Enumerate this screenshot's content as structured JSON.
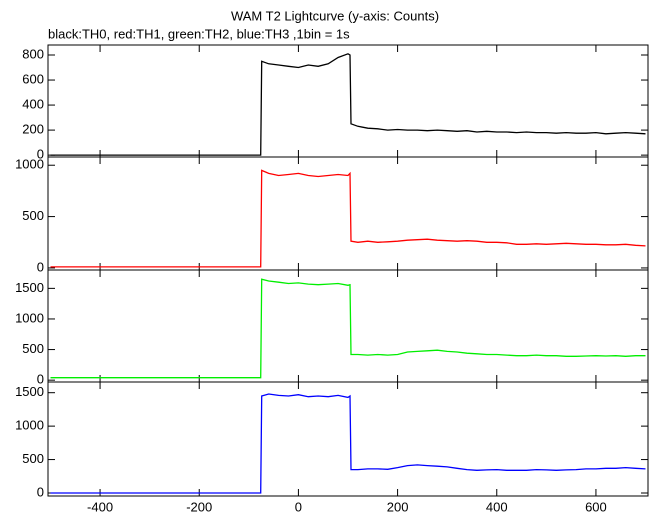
{
  "header": {
    "title": "WAM T2 Lightcurve (y-axis: Counts)",
    "subtitle": "black:TH0, red:TH1, green:TH2, blue:TH3 ,1bin = 1s"
  },
  "chart_data": [
    {
      "type": "line",
      "xlim": [
        -505,
        705
      ],
      "ylim": [
        -15,
        880
      ],
      "yticks": [
        0,
        200,
        400,
        600,
        800
      ],
      "x": [
        -500,
        -400,
        -300,
        -200,
        -100,
        -76,
        -74,
        -60,
        -40,
        -20,
        0,
        20,
        40,
        60,
        80,
        100,
        104,
        106,
        120,
        140,
        160,
        180,
        200,
        220,
        240,
        260,
        280,
        300,
        320,
        340,
        360,
        380,
        400,
        420,
        440,
        460,
        480,
        500,
        520,
        540,
        560,
        580,
        600,
        620,
        640,
        660,
        680,
        700
      ],
      "series": [
        {
          "name": "TH0",
          "color": "#000000",
          "values": [
            0,
            0,
            0,
            0,
            0,
            0,
            750,
            730,
            720,
            710,
            700,
            720,
            710,
            730,
            780,
            810,
            800,
            250,
            230,
            215,
            210,
            200,
            205,
            200,
            200,
            195,
            200,
            195,
            190,
            195,
            185,
            190,
            185,
            185,
            180,
            185,
            180,
            180,
            175,
            180,
            175,
            175,
            180,
            170,
            175,
            180,
            175,
            170
          ]
        }
      ]
    },
    {
      "type": "line",
      "xlim": [
        -505,
        705
      ],
      "ylim": [
        -20,
        1080
      ],
      "yticks": [
        0,
        500,
        1000
      ],
      "x": [
        -500,
        -400,
        -300,
        -200,
        -100,
        -76,
        -74,
        -60,
        -40,
        -20,
        0,
        20,
        40,
        60,
        80,
        100,
        104,
        106,
        120,
        140,
        160,
        180,
        200,
        220,
        240,
        260,
        280,
        300,
        320,
        340,
        360,
        380,
        400,
        420,
        440,
        460,
        480,
        500,
        520,
        540,
        560,
        580,
        600,
        620,
        640,
        660,
        680,
        700
      ],
      "series": [
        {
          "name": "TH1",
          "color": "#ff0000",
          "values": [
            10,
            10,
            10,
            10,
            10,
            10,
            950,
            920,
            900,
            910,
            920,
            900,
            890,
            900,
            910,
            900,
            920,
            260,
            250,
            260,
            250,
            255,
            260,
            270,
            275,
            280,
            270,
            265,
            260,
            265,
            260,
            250,
            250,
            245,
            230,
            230,
            235,
            230,
            235,
            240,
            235,
            230,
            230,
            225,
            225,
            230,
            220,
            215
          ]
        }
      ]
    },
    {
      "type": "line",
      "xlim": [
        -505,
        705
      ],
      "ylim": [
        -30,
        1800
      ],
      "yticks": [
        0,
        500,
        1000,
        1500
      ],
      "x": [
        -500,
        -400,
        -300,
        -200,
        -100,
        -76,
        -74,
        -60,
        -40,
        -20,
        0,
        20,
        40,
        60,
        80,
        100,
        104,
        106,
        120,
        140,
        160,
        180,
        200,
        220,
        240,
        260,
        280,
        300,
        320,
        340,
        360,
        380,
        400,
        420,
        440,
        460,
        480,
        500,
        520,
        540,
        560,
        580,
        600,
        620,
        640,
        660,
        680,
        700
      ],
      "series": [
        {
          "name": "TH2",
          "color": "#00ee00",
          "values": [
            40,
            40,
            40,
            40,
            40,
            40,
            1650,
            1620,
            1600,
            1580,
            1590,
            1570,
            1560,
            1570,
            1580,
            1550,
            1560,
            420,
            420,
            410,
            420,
            410,
            420,
            460,
            470,
            480,
            490,
            470,
            460,
            440,
            430,
            420,
            420,
            410,
            400,
            400,
            410,
            400,
            400,
            390,
            390,
            395,
            400,
            395,
            400,
            390,
            400,
            400
          ]
        }
      ]
    },
    {
      "type": "line",
      "xlim": [
        -505,
        705
      ],
      "ylim": [
        -45,
        1660
      ],
      "yticks": [
        0,
        500,
        1000,
        1500
      ],
      "xticks": [
        -400,
        -200,
        0,
        200,
        400,
        600
      ],
      "x": [
        -500,
        -400,
        -300,
        -200,
        -100,
        -76,
        -74,
        -60,
        -40,
        -20,
        0,
        20,
        40,
        60,
        80,
        100,
        104,
        106,
        120,
        140,
        160,
        180,
        200,
        220,
        240,
        260,
        280,
        300,
        320,
        340,
        360,
        380,
        400,
        420,
        440,
        460,
        480,
        500,
        520,
        540,
        560,
        580,
        600,
        620,
        640,
        660,
        680,
        700
      ],
      "series": [
        {
          "name": "TH3",
          "color": "#0000ff",
          "values": [
            0,
            0,
            0,
            0,
            0,
            0,
            1450,
            1480,
            1460,
            1450,
            1470,
            1440,
            1450,
            1440,
            1460,
            1430,
            1450,
            350,
            350,
            360,
            360,
            355,
            380,
            410,
            420,
            410,
            400,
            390,
            370,
            350,
            340,
            345,
            350,
            340,
            340,
            340,
            350,
            345,
            340,
            345,
            350,
            360,
            360,
            370,
            370,
            380,
            370,
            360
          ]
        }
      ]
    }
  ]
}
